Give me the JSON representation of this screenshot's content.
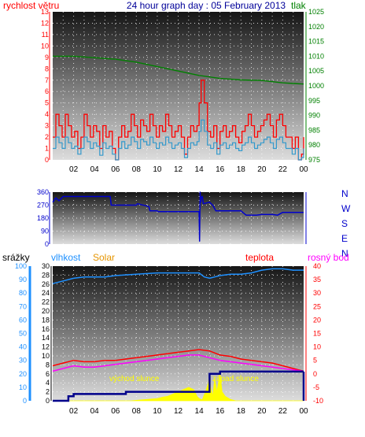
{
  "title": "24 hour graph day : 05 February 2013",
  "colors": {
    "wind": "#ff0000",
    "wind_avg": "#3399cc",
    "pressure": "#008000",
    "direction": "#0000cc",
    "humidity": "#1e90ff",
    "solar": "#ffff00",
    "temperature": "#ff0000",
    "dewpoint": "#ff00ff",
    "rain": "#00008b",
    "title": "#000099",
    "solar_label": "#e69500"
  },
  "time_ticks": [
    "02",
    "04",
    "06",
    "08",
    "10",
    "12",
    "14",
    "16",
    "18",
    "20",
    "22",
    "00"
  ],
  "chart_data": [
    {
      "type": "line",
      "panel": "wind-pressure",
      "y_left": {
        "label": "rychlost větru",
        "range": [
          0,
          13
        ],
        "ticks": [
          "0",
          "1",
          "2",
          "3",
          "4",
          "5",
          "6",
          "7",
          "8",
          "9",
          "10",
          "11",
          "12",
          "13"
        ]
      },
      "y_right": {
        "label": "tlak",
        "range": [
          975,
          1025
        ],
        "ticks": [
          "975",
          "980",
          "985",
          "990",
          "995",
          "1000",
          "1005",
          "1010",
          "1015",
          "1020",
          "1025"
        ]
      },
      "x_range": [
        0,
        24
      ],
      "series": [
        {
          "key": "wind_gust",
          "axis": "left",
          "color": "wind",
          "x": [
            0,
            0.3,
            0.6,
            0.9,
            1.2,
            1.5,
            1.8,
            2.1,
            2.4,
            2.7,
            3.0,
            3.3,
            3.6,
            3.9,
            4.2,
            4.5,
            4.8,
            5.1,
            5.4,
            5.7,
            6.0,
            6.3,
            6.6,
            6.9,
            7.2,
            7.5,
            7.8,
            8.1,
            8.4,
            8.7,
            9.0,
            9.3,
            9.6,
            9.9,
            10.2,
            10.5,
            10.8,
            11.1,
            11.4,
            11.7,
            12.0,
            12.3,
            12.6,
            12.9,
            13.2,
            13.5,
            13.8,
            14.0,
            14.2,
            14.5,
            14.8,
            15.1,
            15.4,
            15.7,
            16.0,
            16.3,
            16.6,
            16.9,
            17.2,
            17.5,
            17.8,
            18.1,
            18.4,
            18.7,
            19.0,
            19.3,
            19.6,
            19.9,
            20.2,
            20.5,
            20.8,
            21.1,
            21.4,
            21.7,
            22.0,
            22.3,
            22.6,
            22.9,
            23.2,
            23.5,
            23.8,
            24.0
          ],
          "y": [
            2,
            4,
            3,
            2,
            4,
            3,
            2,
            2.5,
            1,
            2,
            4,
            3,
            2,
            3,
            2.5,
            1,
            3,
            2,
            2.5,
            1,
            0,
            2,
            3,
            2,
            2.5,
            4,
            3,
            2,
            3.5,
            3,
            2.5,
            4,
            3,
            2,
            3,
            2.5,
            4,
            3,
            2,
            2.5,
            3,
            2,
            0.5,
            2,
            3,
            2.5,
            3,
            5,
            7,
            5,
            2.5,
            2,
            3,
            1,
            2.5,
            3,
            2,
            2.5,
            3,
            2,
            1.5,
            2.5,
            3,
            4,
            3,
            2,
            2.5,
            3,
            3.5,
            4,
            3,
            2,
            3.5,
            4,
            3,
            2,
            2,
            1,
            2,
            0,
            0.5,
            2
          ]
        },
        {
          "key": "wind_avg",
          "axis": "left",
          "color": "wind_avg",
          "x": [
            0,
            0.3,
            0.6,
            0.9,
            1.2,
            1.5,
            1.8,
            2.1,
            2.4,
            2.7,
            3.0,
            3.3,
            3.6,
            3.9,
            4.2,
            4.5,
            4.8,
            5.1,
            5.4,
            5.7,
            6.0,
            6.3,
            6.6,
            6.9,
            7.2,
            7.5,
            7.8,
            8.1,
            8.4,
            8.7,
            9.0,
            9.3,
            9.6,
            9.9,
            10.2,
            10.5,
            10.8,
            11.1,
            11.4,
            11.7,
            12.0,
            12.3,
            12.6,
            12.9,
            13.2,
            13.5,
            13.8,
            14.0,
            14.2,
            14.5,
            14.8,
            15.1,
            15.4,
            15.7,
            16.0,
            16.3,
            16.6,
            16.9,
            17.2,
            17.5,
            17.8,
            18.1,
            18.4,
            18.7,
            19.0,
            19.3,
            19.6,
            19.9,
            20.2,
            20.5,
            20.8,
            21.1,
            21.4,
            21.7,
            22.0,
            22.3,
            22.6,
            22.9,
            23.2,
            23.5,
            23.8,
            24.0
          ],
          "y": [
            1,
            2,
            1.5,
            1,
            2,
            1.5,
            1,
            1.2,
            0.5,
            1,
            2,
            1.6,
            1,
            1.5,
            1.2,
            0.4,
            1.5,
            1,
            1.2,
            0.5,
            0,
            1,
            1.6,
            1,
            1.3,
            2,
            1.6,
            1,
            1.8,
            1.6,
            1.3,
            2,
            1.5,
            1,
            1.5,
            1.3,
            2,
            1.5,
            1,
            1.3,
            1.5,
            1,
            0.2,
            1,
            1.5,
            1.3,
            1.6,
            2.5,
            3.5,
            2.5,
            1.3,
            1,
            1.5,
            0.5,
            1.3,
            1.5,
            1,
            1.3,
            1.5,
            1,
            0.8,
            1.3,
            1.5,
            2,
            1.5,
            1,
            1.3,
            1.5,
            1.8,
            2,
            1.5,
            1,
            1.8,
            2,
            1.5,
            1,
            1,
            0.5,
            1,
            0,
            0.2,
            1
          ]
        },
        {
          "key": "pressure",
          "axis": "right",
          "color": "pressure",
          "x": [
            0,
            2,
            4,
            6,
            8,
            10,
            12,
            14,
            16,
            18,
            20,
            22,
            23,
            24
          ],
          "y": [
            1010,
            1010,
            1009.5,
            1009,
            1008,
            1006.5,
            1005,
            1003.5,
            1002.5,
            1002,
            1001.8,
            1001,
            1000.8,
            1000.6
          ]
        }
      ]
    },
    {
      "type": "line",
      "panel": "wind-direction",
      "y_left": {
        "range": [
          0,
          360
        ],
        "ticks": [
          "0",
          "90",
          "180",
          "270",
          "360"
        ]
      },
      "y_right": {
        "ticks": [
          "N",
          "W",
          "S",
          "E",
          "N"
        ]
      },
      "x_range": [
        0,
        24
      ],
      "series": [
        {
          "key": "direction",
          "axis": "left",
          "color": "direction",
          "x": [
            0,
            0.3,
            0.6,
            1.0,
            2.0,
            4.0,
            5.5,
            5.6,
            8.0,
            8.1,
            9.2,
            9.3,
            10.0,
            10.1,
            14.0,
            14.05,
            14.1,
            14.15,
            14.2,
            14.3,
            14.4,
            15.0,
            15.3,
            15.6,
            16.0,
            17.0,
            17.5,
            18.0,
            18.5,
            19.5,
            20.0,
            21.0,
            21.5,
            22.0,
            23.0,
            24.0
          ],
          "y": [
            290,
            320,
            300,
            330,
            330,
            330,
            330,
            270,
            270,
            280,
            260,
            230,
            230,
            225,
            225,
            20,
            360,
            290,
            320,
            330,
            280,
            290,
            270,
            230,
            230,
            230,
            230,
            230,
            200,
            200,
            205,
            205,
            200,
            220,
            220,
            220
          ]
        }
      ]
    },
    {
      "type": "line",
      "panel": "humidity-temperature",
      "y_left_outer": {
        "label": "srážky",
        "range": [
          0,
          100
        ],
        "ticks": [
          "0",
          "10",
          "20",
          "30",
          "40",
          "50",
          "60",
          "70",
          "80",
          "90",
          "100"
        ]
      },
      "y_left_inner": {
        "label": "vlhkost",
        "range": [
          0,
          30
        ],
        "ticks": [
          "0",
          "2",
          "4",
          "6",
          "8",
          "10",
          "12",
          "14",
          "16",
          "18",
          "20",
          "22",
          "24",
          "26",
          "28",
          "30"
        ]
      },
      "y_right": {
        "label": "teplota",
        "range": [
          -10,
          40
        ],
        "ticks": [
          "-10",
          "-5",
          "0",
          "5",
          "10",
          "15",
          "20",
          "25",
          "30",
          "35",
          "40"
        ]
      },
      "x_range": [
        0,
        24
      ],
      "annotations": [
        "východ slunce",
        "západ slunce"
      ],
      "series_labels": [
        "Solar",
        "rosný bod"
      ],
      "series": [
        {
          "key": "humidity",
          "axis": "left_outer",
          "color": "humidity",
          "x": [
            0,
            1,
            2,
            3,
            5,
            6,
            8,
            10,
            12,
            13,
            13.5,
            14,
            14.5,
            15,
            15.5,
            16,
            17,
            18,
            19,
            20,
            21,
            22,
            23,
            24
          ],
          "y": [
            87,
            89,
            91,
            92,
            92,
            93,
            94,
            95,
            95,
            95,
            95,
            95,
            92,
            91,
            92,
            93,
            94,
            94,
            95,
            97,
            98,
            98,
            97,
            97
          ]
        },
        {
          "key": "temperature",
          "axis": "right",
          "color": "temperature",
          "x": [
            0,
            1,
            2,
            3,
            4,
            5,
            6,
            7,
            8,
            9,
            10,
            11,
            12,
            13,
            14,
            15,
            16,
            17,
            18,
            19,
            20,
            21,
            22,
            23,
            24
          ],
          "y": [
            3,
            4,
            5,
            4.5,
            4.5,
            5,
            5,
            5.5,
            6,
            6.5,
            7,
            7.5,
            8,
            8.5,
            9,
            8.5,
            7,
            6.5,
            5.5,
            5,
            4.5,
            4,
            3,
            2,
            1
          ]
        },
        {
          "key": "dewpoint",
          "axis": "right",
          "color": "dewpoint",
          "x": [
            0,
            1,
            2,
            3,
            4,
            5,
            6,
            7,
            8,
            9,
            10,
            11,
            12,
            13,
            14,
            15,
            16,
            17,
            18,
            19,
            20,
            21,
            22,
            23,
            24
          ],
          "y": [
            1,
            2,
            3,
            2.5,
            2.5,
            3,
            3.5,
            4,
            4.5,
            5,
            5.5,
            6,
            6.5,
            7,
            7,
            6,
            5,
            4.5,
            4,
            3.5,
            3,
            2.5,
            2,
            1.5,
            1
          ]
        },
        {
          "key": "rain",
          "axis": "left_inner",
          "color": "rain",
          "x": [
            0,
            1,
            1.5,
            2,
            6,
            7,
            8,
            9,
            10,
            11,
            12,
            13,
            14,
            15,
            16,
            17,
            18,
            19,
            20,
            21,
            22,
            23,
            24
          ],
          "y": [
            0,
            0,
            1,
            1.5,
            1.5,
            2,
            2,
            2,
            2,
            2,
            2,
            2,
            2,
            6,
            6.5,
            6.5,
            6.5,
            6.5,
            6.5,
            6.5,
            6.5,
            6.5,
            6.5
          ]
        },
        {
          "key": "solar",
          "axis": "left_inner",
          "color": "solar",
          "kind": "area",
          "x": [
            0,
            7.5,
            8,
            9,
            10,
            10.5,
            11,
            11.5,
            12,
            12.5,
            13,
            13.5,
            13.8,
            14.0,
            14.3,
            14.6,
            14.9,
            15.0,
            15.1,
            15.3,
            15.5,
            15.7,
            16.0,
            16.2,
            16.5,
            17,
            17.5,
            24
          ],
          "y": [
            0,
            0,
            0.1,
            0.3,
            0.5,
            0.8,
            1,
            1.5,
            2,
            2.5,
            3,
            2.5,
            1,
            0.5,
            0.2,
            2,
            4,
            6,
            3,
            1,
            5,
            2,
            6,
            2,
            1,
            0.3,
            0,
            0
          ]
        }
      ]
    }
  ]
}
